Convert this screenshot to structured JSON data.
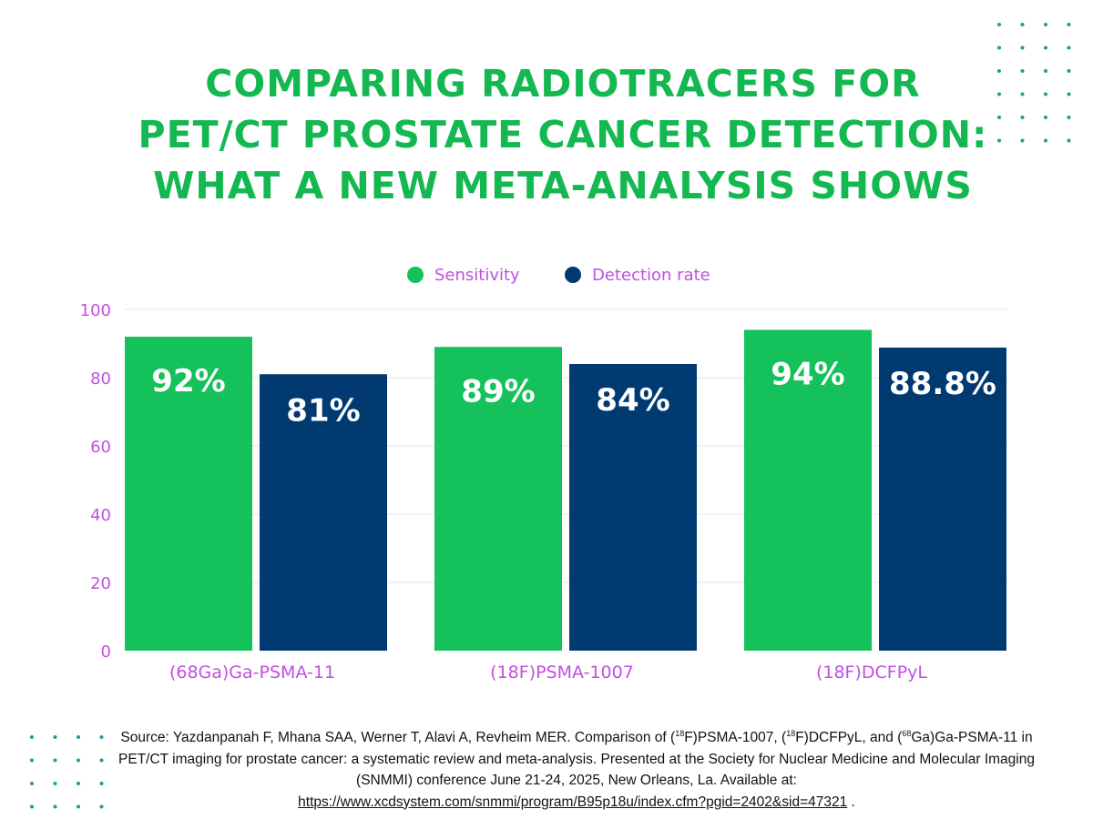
{
  "title_lines": [
    "COMPARING RADIOTRACERS FOR",
    "PET/CT PROSTATE CANCER DETECTION:",
    "WHAT A NEW META-ANALYSIS SHOWS"
  ],
  "colors": {
    "title": "#14b850",
    "sensitivity": "#14c15a",
    "detection": "#003a70",
    "axis_text": "#c24fe0",
    "grid": "#eedcf3",
    "dots": "#1f9aa0",
    "value_label": "#ffffff"
  },
  "chart_data": {
    "type": "bar",
    "title": "COMPARING RADIOTRACERS FOR PET/CT PROSTATE CANCER DETECTION: WHAT A NEW META-ANALYSIS SHOWS",
    "categories": [
      "(68Ga)Ga-PSMA-11",
      "(18F)PSMA-1007",
      "(18F)DCFPyL"
    ],
    "series": [
      {
        "name": "Sensitivity",
        "color": "#14c15a",
        "values": [
          92,
          89,
          94
        ],
        "labels": [
          "92%",
          "89%",
          "94%"
        ]
      },
      {
        "name": "Detection rate",
        "color": "#003a70",
        "values": [
          81,
          84,
          88.8
        ],
        "labels": [
          "81%",
          "84%",
          "88.8%"
        ]
      }
    ],
    "yticks": [
      0,
      20,
      40,
      60,
      80,
      100
    ],
    "ylim": [
      0,
      100
    ],
    "xlabel": "",
    "ylabel": "",
    "legend_position": "top-center",
    "grid": true
  },
  "source": {
    "prefix": "Source: Yazdanpanah F, Mhana SAA, Werner T, Alavi A, Revheim MER. Comparison of (",
    "sup1": "18",
    "mid1": "F)PSMA-1007, (",
    "sup2": "18",
    "mid2": "F)DCFPyL, and (",
    "sup3": "68",
    "mid3": "Ga)Ga-PSMA-11 in PET/CT imaging for prostate cancer: a systematic review and meta-analysis. Presented at the Society for Nuclear Medicine and Molecular Imaging (SNMMI) conference June 21-24, 2025, New Orleans, La. Available at:",
    "url": "https://www.xcdsystem.com/snmmi/program/B95p18u/index.cfm?pgid=2402&sid=47321",
    "suffix": " ."
  }
}
